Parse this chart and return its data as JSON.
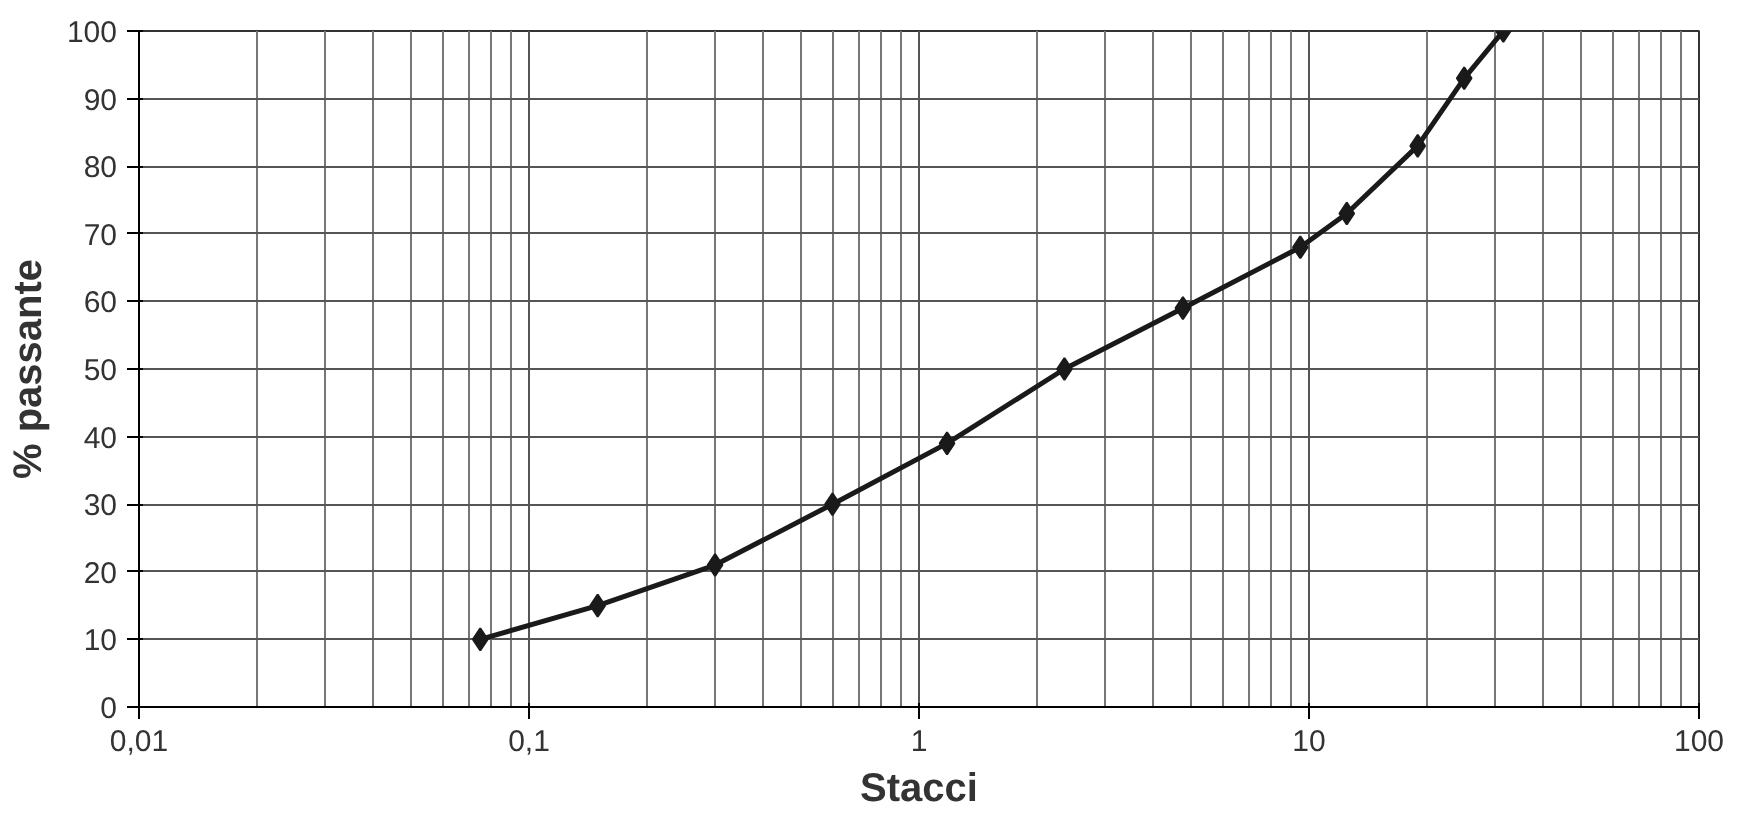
{
  "chart_data": {
    "type": "line",
    "xlabel": "Stacci",
    "ylabel": "% passante",
    "log": "x",
    "x": [
      0.075,
      0.15,
      0.3,
      0.6,
      1.18,
      2.36,
      4.75,
      9.5,
      12.5,
      19,
      25,
      31.5
    ],
    "series": [
      {
        "color": "#1a1a1a",
        "values": [
          10,
          15,
          21,
          30,
          39,
          50,
          59,
          68,
          73,
          83,
          93,
          100
        ]
      }
    ],
    "xlim": [
      0.01,
      100
    ],
    "xticks": [
      {
        "value": 0.01,
        "label": "0,01"
      },
      {
        "value": 0.1,
        "label": "0,1"
      },
      1,
      10,
      100
    ],
    "ylim": [
      0,
      100
    ],
    "yticks": [
      0,
      10,
      20,
      30,
      40,
      50,
      60,
      70,
      80,
      90,
      100
    ],
    "grid": true,
    "marker": "diamond",
    "line_style": "solid"
  }
}
